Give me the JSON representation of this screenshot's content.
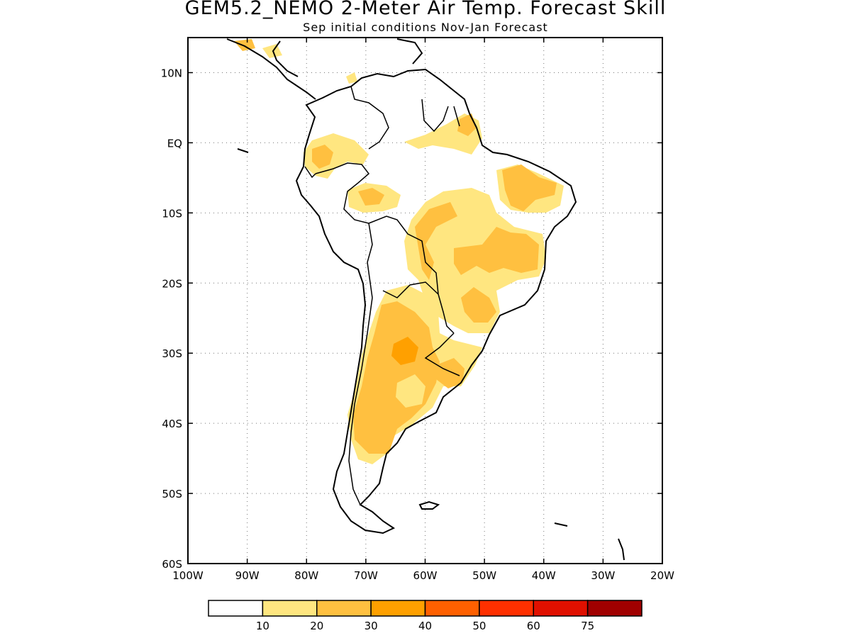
{
  "title": "GEM5.2_NEMO 2-Meter Air Temp. Forecast Skill",
  "subtitle": "Sep initial conditions  Nov-Jan Forecast",
  "map": {
    "lon_range": [
      -100,
      -20
    ],
    "lat_range": [
      -60,
      15
    ],
    "lat_ticks": [
      {
        "value": 10,
        "label": "10N"
      },
      {
        "value": 0,
        "label": "EQ"
      },
      {
        "value": -10,
        "label": "10S"
      },
      {
        "value": -20,
        "label": "20S"
      },
      {
        "value": -30,
        "label": "30S"
      },
      {
        "value": -40,
        "label": "40S"
      },
      {
        "value": -50,
        "label": "50S"
      },
      {
        "value": -60,
        "label": "60S"
      }
    ],
    "lon_ticks": [
      {
        "value": -100,
        "label": "100W"
      },
      {
        "value": -90,
        "label": "90W"
      },
      {
        "value": -80,
        "label": "80W"
      },
      {
        "value": -70,
        "label": "70W"
      },
      {
        "value": -60,
        "label": "60W"
      },
      {
        "value": -50,
        "label": "50W"
      },
      {
        "value": -40,
        "label": "40W"
      },
      {
        "value": -30,
        "label": "30W"
      },
      {
        "value": -20,
        "label": "20W"
      }
    ],
    "grid": "dotted"
  },
  "colorbar": {
    "colors": [
      "#ffffff",
      "#ffe680",
      "#ffc040",
      "#ffa000",
      "#ff6000",
      "#ff3000",
      "#e01000",
      "#a00000"
    ],
    "tick_labels": [
      "10",
      "20",
      "30",
      "40",
      "50",
      "60",
      "75"
    ]
  },
  "colors": {
    "c10": "#ffe680",
    "c20": "#ffc040",
    "c30": "#ffa000",
    "c40": "#ff6000",
    "coast": "#000000"
  }
}
